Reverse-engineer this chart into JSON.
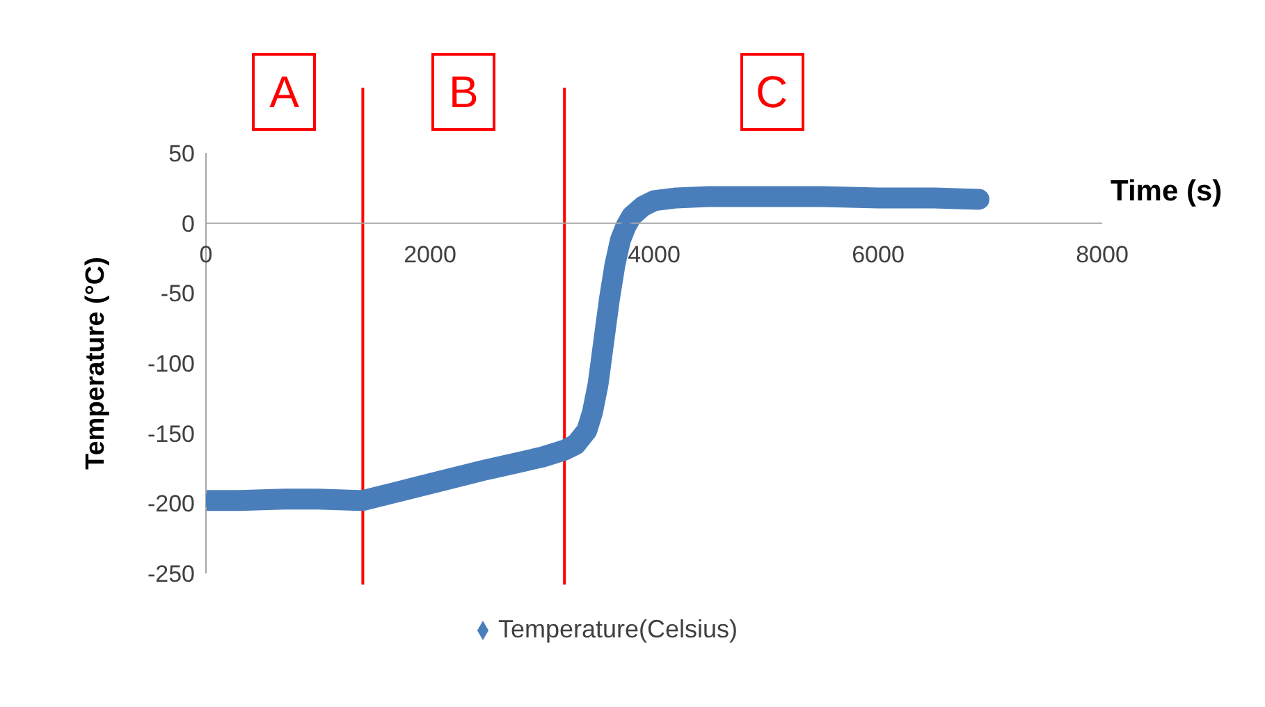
{
  "chart_data": {
    "type": "line",
    "xlabel": "Time (s)",
    "ylabel": "Temperature (°C)",
    "xlim": [
      0,
      8000
    ],
    "xticks": [
      0,
      2000,
      4000,
      6000,
      8000
    ],
    "ylim": [
      -250,
      50
    ],
    "yticks": [
      50,
      0,
      -50,
      -100,
      -150,
      -200,
      -250
    ],
    "series": [
      {
        "name": "Temperature(Celsius)",
        "color": "#4a7ebb",
        "x": [
          0,
          300,
          700,
          1000,
          1400,
          1700,
          2000,
          2500,
          3000,
          3200,
          3300,
          3400,
          3450,
          3500,
          3550,
          3600,
          3650,
          3700,
          3750,
          3800,
          3900,
          4000,
          4200,
          4500,
          5000,
          5500,
          6000,
          6500,
          6900
        ],
        "values": [
          -198,
          -198,
          -197,
          -197,
          -198,
          -192,
          -186,
          -176,
          -167,
          -162,
          -158,
          -148,
          -135,
          -115,
          -85,
          -55,
          -30,
          -12,
          -2,
          5,
          12,
          16,
          18,
          19,
          19,
          19,
          18,
          18,
          17
        ]
      }
    ],
    "ref_lines": [
      {
        "axis": "x",
        "value": 1400,
        "color": "#ff0000"
      },
      {
        "axis": "x",
        "value": 3200,
        "color": "#ff0000"
      }
    ],
    "annotations": [
      "A",
      "B",
      "C"
    ],
    "legend": "bottom",
    "marker": "diamond",
    "line_style": "solid",
    "grid": false
  }
}
